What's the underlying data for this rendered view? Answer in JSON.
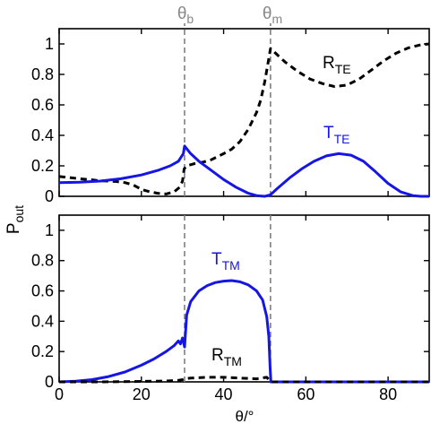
{
  "chart_data": [
    {
      "type": "line",
      "panel": "top",
      "xlim": [
        0,
        90
      ],
      "ylim": [
        0,
        1.1
      ],
      "yticks": [
        {
          "value": 0,
          "label": "0"
        },
        {
          "value": 0.2,
          "label": "0.2"
        },
        {
          "value": 0.4,
          "label": "0.4"
        },
        {
          "value": 0.6,
          "label": "0.6"
        },
        {
          "value": 0.8,
          "label": "0.8"
        },
        {
          "value": 1,
          "label": "1"
        }
      ],
      "top_markers": [
        {
          "x": 30.5,
          "label_main": "θ",
          "label_sub": "b"
        },
        {
          "x": 51.4,
          "label_main": "θ",
          "label_sub": "m"
        }
      ],
      "series": [
        {
          "name_main": "R",
          "name_sub": "TE",
          "color": "#000000",
          "style": "dashed",
          "points": [
            [
              0,
              0.13
            ],
            [
              2,
              0.125
            ],
            [
              5,
              0.115
            ],
            [
              8,
              0.108
            ],
            [
              10,
              0.102
            ],
            [
              12,
              0.1
            ],
            [
              14,
              0.097
            ],
            [
              16,
              0.09
            ],
            [
              18,
              0.075
            ],
            [
              20,
              0.045
            ],
            [
              22,
              0.03
            ],
            [
              24,
              0.02
            ],
            [
              26,
              0.015
            ],
            [
              28,
              0.03
            ],
            [
              29.3,
              0.06
            ],
            [
              30,
              0.1
            ],
            [
              30.4,
              0.18
            ],
            [
              31,
              0.2
            ],
            [
              33,
              0.215
            ],
            [
              35,
              0.225
            ],
            [
              37,
              0.24
            ],
            [
              40,
              0.28
            ],
            [
              42,
              0.31
            ],
            [
              44,
              0.36
            ],
            [
              46,
              0.44
            ],
            [
              48,
              0.55
            ],
            [
              49,
              0.63
            ],
            [
              50,
              0.75
            ],
            [
              50.7,
              0.86
            ],
            [
              51.4,
              0.97
            ],
            [
              53,
              0.93
            ],
            [
              55,
              0.88
            ],
            [
              58,
              0.82
            ],
            [
              61,
              0.77
            ],
            [
              64,
              0.74
            ],
            [
              67,
              0.72
            ],
            [
              70,
              0.73
            ],
            [
              73,
              0.77
            ],
            [
              76,
              0.83
            ],
            [
              79,
              0.89
            ],
            [
              82,
              0.94
            ],
            [
              85,
              0.975
            ],
            [
              88,
              0.995
            ],
            [
              90,
              1.0
            ]
          ]
        },
        {
          "name_main": "T",
          "name_sub": "TE",
          "color": "#1515e6",
          "style": "solid",
          "points": [
            [
              0,
              0.09
            ],
            [
              5,
              0.093
            ],
            [
              10,
              0.1
            ],
            [
              15,
              0.115
            ],
            [
              20,
              0.14
            ],
            [
              24,
              0.17
            ],
            [
              27,
              0.2
            ],
            [
              29,
              0.23
            ],
            [
              30.2,
              0.28
            ],
            [
              30.5,
              0.33
            ],
            [
              32,
              0.28
            ],
            [
              34,
              0.23
            ],
            [
              37,
              0.17
            ],
            [
              40,
              0.11
            ],
            [
              43,
              0.06
            ],
            [
              46,
              0.02
            ],
            [
              48,
              0.005
            ],
            [
              50,
              0.0
            ],
            [
              51.4,
              0.01
            ],
            [
              53,
              0.05
            ],
            [
              56,
              0.12
            ],
            [
              59,
              0.18
            ],
            [
              62,
              0.23
            ],
            [
              65,
              0.265
            ],
            [
              68,
              0.28
            ],
            [
              71,
              0.27
            ],
            [
              74,
              0.23
            ],
            [
              77,
              0.16
            ],
            [
              80,
              0.085
            ],
            [
              83,
              0.03
            ],
            [
              86,
              0.005
            ],
            [
              88,
              0.0
            ],
            [
              90,
              0.0
            ]
          ]
        }
      ]
    },
    {
      "type": "line",
      "panel": "bottom",
      "xlim": [
        0,
        90
      ],
      "ylim": [
        0,
        1.1
      ],
      "xticks": [
        {
          "value": 0,
          "label": "0"
        },
        {
          "value": 20,
          "label": "20"
        },
        {
          "value": 40,
          "label": "40"
        },
        {
          "value": 60,
          "label": "60"
        },
        {
          "value": 80,
          "label": "80"
        }
      ],
      "yticks": [
        {
          "value": 0,
          "label": "0"
        },
        {
          "value": 0.2,
          "label": "0.2"
        },
        {
          "value": 0.4,
          "label": "0.4"
        },
        {
          "value": 0.6,
          "label": "0.6"
        },
        {
          "value": 0.8,
          "label": "0.8"
        },
        {
          "value": 1,
          "label": "1"
        }
      ],
      "markers": [
        30.5,
        51.4
      ],
      "series": [
        {
          "name_main": "T",
          "name_sub": "TM",
          "color": "#1515e6",
          "style": "solid",
          "points": [
            [
              0,
              0.0
            ],
            [
              4,
              0.005
            ],
            [
              8,
              0.015
            ],
            [
              12,
              0.035
            ],
            [
              16,
              0.065
            ],
            [
              20,
              0.11
            ],
            [
              23,
              0.15
            ],
            [
              26,
              0.2
            ],
            [
              28,
              0.24
            ],
            [
              29,
              0.27
            ],
            [
              29.5,
              0.25
            ],
            [
              30,
              0.29
            ],
            [
              30.5,
              0.23
            ],
            [
              31,
              0.44
            ],
            [
              32,
              0.53
            ],
            [
              34,
              0.6
            ],
            [
              36,
              0.635
            ],
            [
              38,
              0.655
            ],
            [
              40,
              0.665
            ],
            [
              42,
              0.668
            ],
            [
              44,
              0.66
            ],
            [
              46,
              0.64
            ],
            [
              48,
              0.6
            ],
            [
              49.5,
              0.54
            ],
            [
              50.5,
              0.43
            ],
            [
              51,
              0.3
            ],
            [
              51.3,
              0.1
            ],
            [
              51.5,
              0.0
            ],
            [
              60,
              0.0
            ],
            [
              70,
              0.0
            ],
            [
              80,
              0.0
            ],
            [
              90,
              0.0
            ]
          ]
        },
        {
          "name_main": "R",
          "name_sub": "TM",
          "color": "#000000",
          "style": "dashed",
          "points": [
            [
              0,
              0.0
            ],
            [
              10,
              0.0
            ],
            [
              20,
              0.003
            ],
            [
              26,
              0.006
            ],
            [
              29,
              0.01
            ],
            [
              30,
              0.015
            ],
            [
              30.5,
              0.02
            ],
            [
              32,
              0.025
            ],
            [
              36,
              0.03
            ],
            [
              40,
              0.03
            ],
            [
              44,
              0.025
            ],
            [
              48,
              0.02
            ],
            [
              50.5,
              0.03
            ],
            [
              51,
              0.015
            ],
            [
              51.5,
              0.0
            ],
            [
              60,
              0.0
            ],
            [
              70,
              0.0
            ],
            [
              80,
              0.0
            ],
            [
              90,
              0.0
            ]
          ]
        }
      ]
    }
  ],
  "ylabel_main": "P",
  "ylabel_sub": "out",
  "xlabel": "θ/°"
}
